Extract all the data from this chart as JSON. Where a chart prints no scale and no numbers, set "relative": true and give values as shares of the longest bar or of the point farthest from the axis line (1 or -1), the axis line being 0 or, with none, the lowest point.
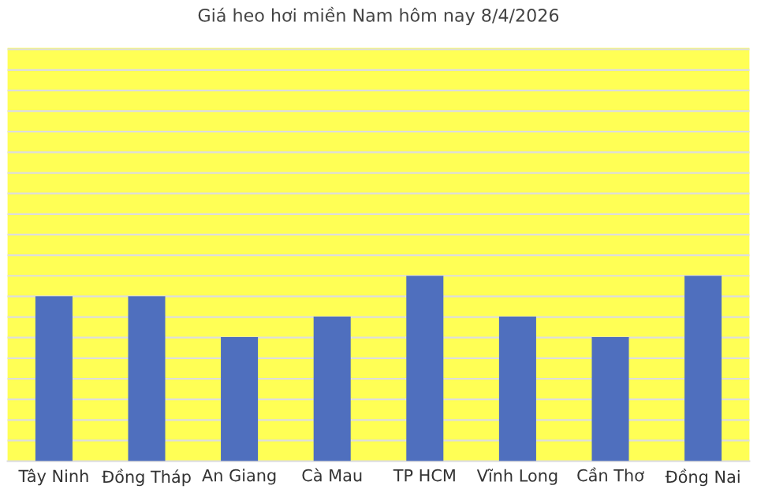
{
  "chart_data": {
    "type": "bar",
    "title": "Giá heo hơi miền Nam hôm nay 8/4/2026",
    "categories": [
      "Tây Ninh",
      "Đồng Tháp",
      "An Giang",
      "Cà Mau",
      "TP HCM",
      "Vĩnh Long",
      "Cần Thơ",
      "Đồng Nai"
    ],
    "values": [
      0.89,
      0.89,
      0.67,
      0.78,
      1,
      0.78,
      0.67,
      1
    ],
    "color": "#4f6fbe",
    "relative": true,
    "grid": "y",
    "legend": false
  }
}
